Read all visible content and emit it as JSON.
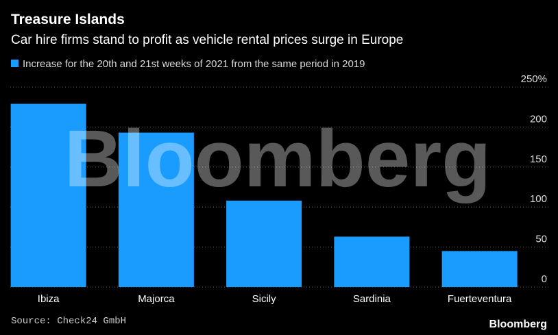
{
  "chart_data": {
    "type": "bar",
    "title": "Treasure Islands",
    "subtitle": "Car hire firms stand to profit as vehicle rental prices surge in Europe",
    "categories": [
      "Ibiza",
      "Majorca",
      "Sicily",
      "Sardinia",
      "Fuerteventura"
    ],
    "series": [
      {
        "name": "Increase for the 20th and 21st weeks of 2021 from the same period in 2019",
        "color": "#1a9cff",
        "values": [
          229,
          193,
          108,
          63,
          45
        ]
      }
    ],
    "ylim": [
      0,
      250
    ],
    "yticks": [
      0,
      50,
      100,
      150,
      200,
      {
        "value": 250,
        "label": "250%"
      }
    ],
    "grid": true,
    "source": "Source: Check24 GmbH",
    "watermark": "Bloomberg",
    "logo": "Bloomberg"
  }
}
